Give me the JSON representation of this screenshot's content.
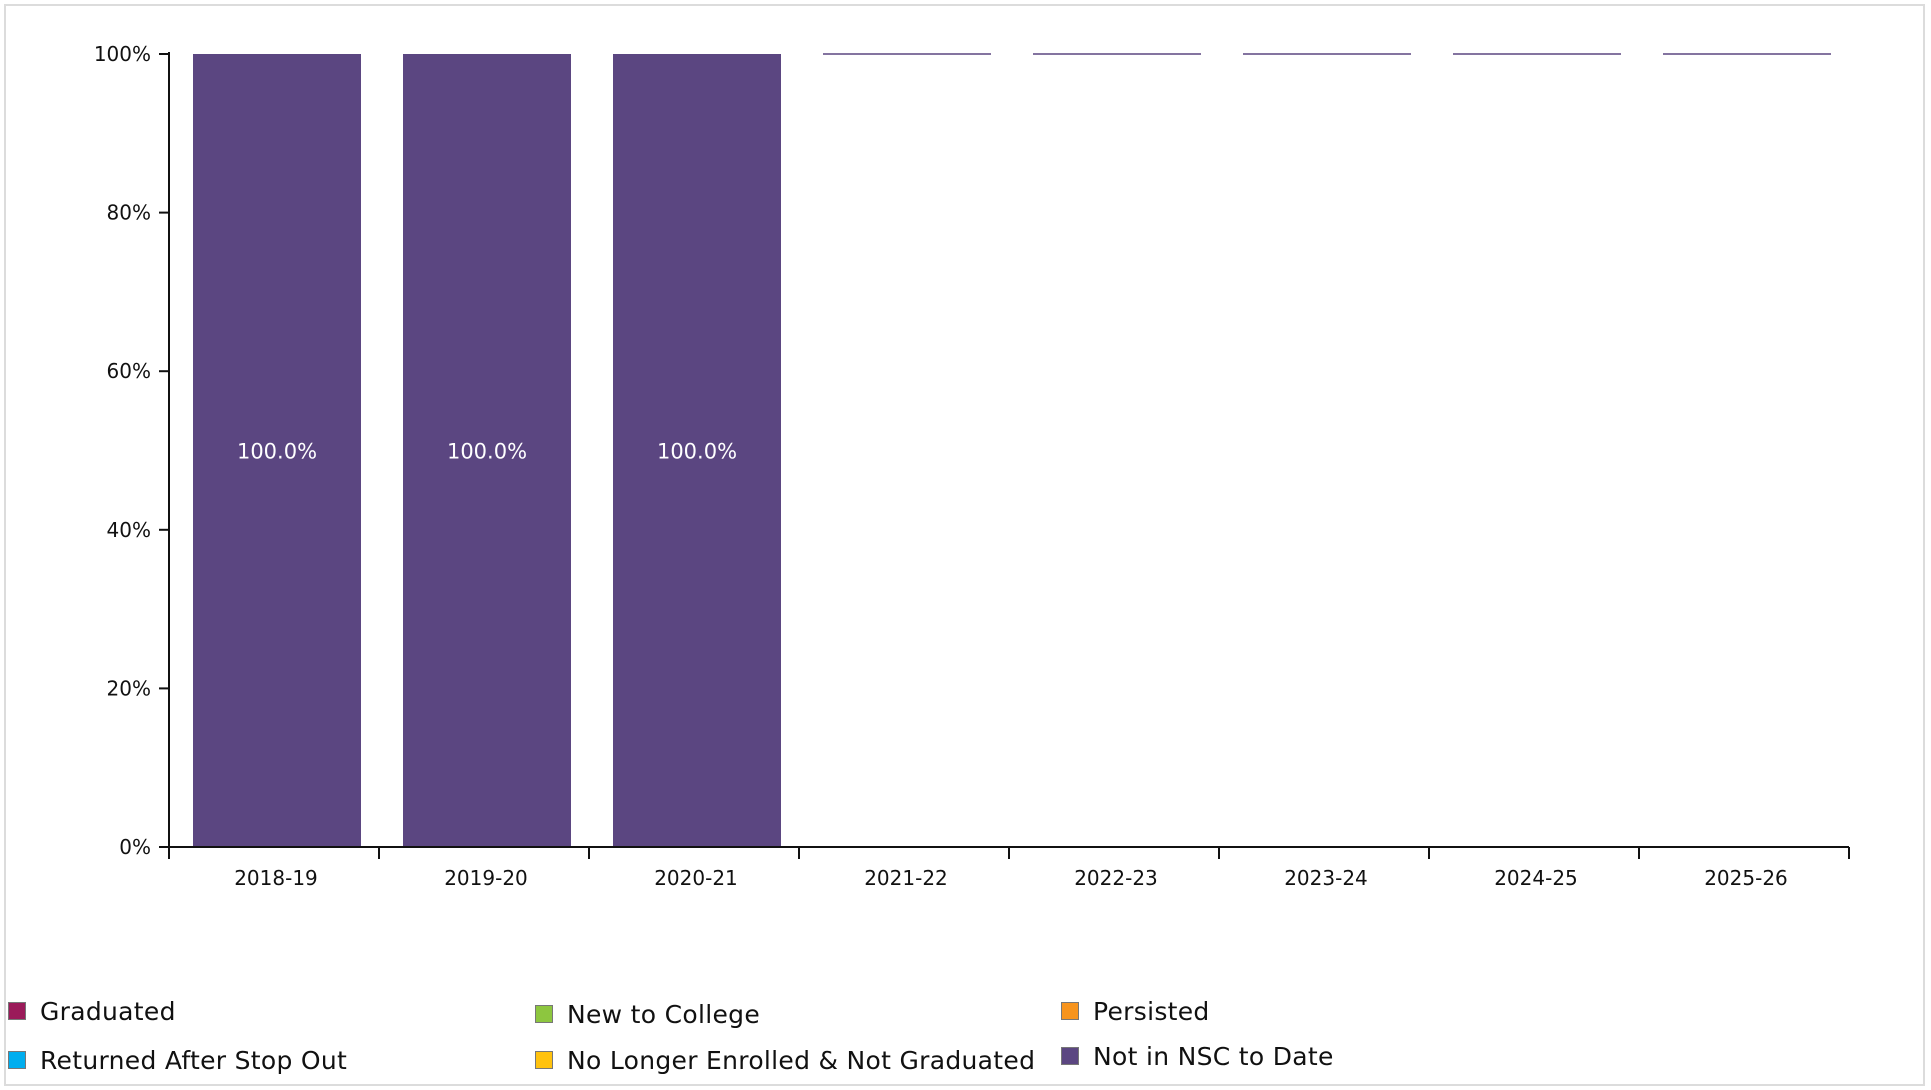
{
  "chart_data": {
    "type": "bar",
    "stacked": true,
    "categories": [
      "2018-19",
      "2019-20",
      "2020-21",
      "2021-22",
      "2022-23",
      "2023-24",
      "2024-25",
      "2025-26"
    ],
    "series": [
      {
        "name": "Graduated",
        "color": "#9b1b5a",
        "values": [
          0,
          0,
          0,
          0,
          0,
          0,
          0,
          0
        ]
      },
      {
        "name": "New to College",
        "color": "#8dc63f",
        "values": [
          0,
          0,
          0,
          0,
          0,
          0,
          0,
          0
        ]
      },
      {
        "name": "Persisted",
        "color": "#f7941d",
        "values": [
          0,
          0,
          0,
          0,
          0,
          0,
          0,
          0
        ]
      },
      {
        "name": "Returned After Stop Out",
        "color": "#00aeef",
        "values": [
          0,
          0,
          0,
          0,
          0,
          0,
          0,
          0
        ]
      },
      {
        "name": "No Longer Enrolled & Not Graduated",
        "color": "#ffc20e",
        "values": [
          0,
          0,
          0,
          0,
          0,
          0,
          0,
          0
        ]
      },
      {
        "name": "Not in NSC to Date",
        "color": "#5b4681",
        "values": [
          100,
          100,
          100,
          0,
          0,
          0,
          0,
          0
        ]
      }
    ],
    "data_labels": [
      "100.0%",
      "100.0%",
      "100.0%",
      "",
      "",
      "",
      "",
      ""
    ],
    "y_ticks": [
      "0%",
      "20%",
      "40%",
      "60%",
      "80%",
      "100%"
    ],
    "ylim": [
      0,
      100
    ],
    "legend_position": "bottom"
  }
}
